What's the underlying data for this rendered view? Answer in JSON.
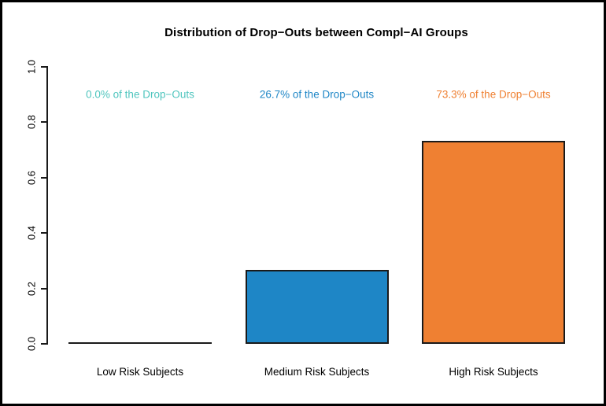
{
  "page": {
    "background": "#FFFFFF",
    "frame_color": "#000000"
  },
  "chart_data": {
    "type": "bar",
    "title": "Distribution of Drop−Outs between Compl−AI Groups",
    "categories": [
      "Low Risk Subjects",
      "Medium Risk Subjects",
      "High Risk Subjects"
    ],
    "values": [
      0.0,
      0.267,
      0.733
    ],
    "value_labels": [
      "0.0% of the Drop−Outs",
      "26.7% of the Drop−Outs",
      "73.3% of the Drop−Outs"
    ],
    "value_label_colors": [
      "#4FC5BE",
      "#1E86C6",
      "#EF8032"
    ],
    "bar_fill_colors": [
      "#FFFFFF",
      "#1E86C6",
      "#EF8032"
    ],
    "bar_border_color": "#1A1A1A",
    "axis_color": "#1A1A1A",
    "title_color": "#000000",
    "tick_text_color": "#000000",
    "ylim": [
      0,
      1
    ],
    "yticks": [
      0.0,
      0.2,
      0.4,
      0.6,
      0.8,
      1.0
    ],
    "ytick_labels": [
      "0.0",
      "0.2",
      "0.4",
      "0.6",
      "0.8",
      "1.0"
    ],
    "xlabel": "",
    "ylabel": "",
    "grid": false,
    "legend": "none",
    "annotation_y": 0.9
  }
}
